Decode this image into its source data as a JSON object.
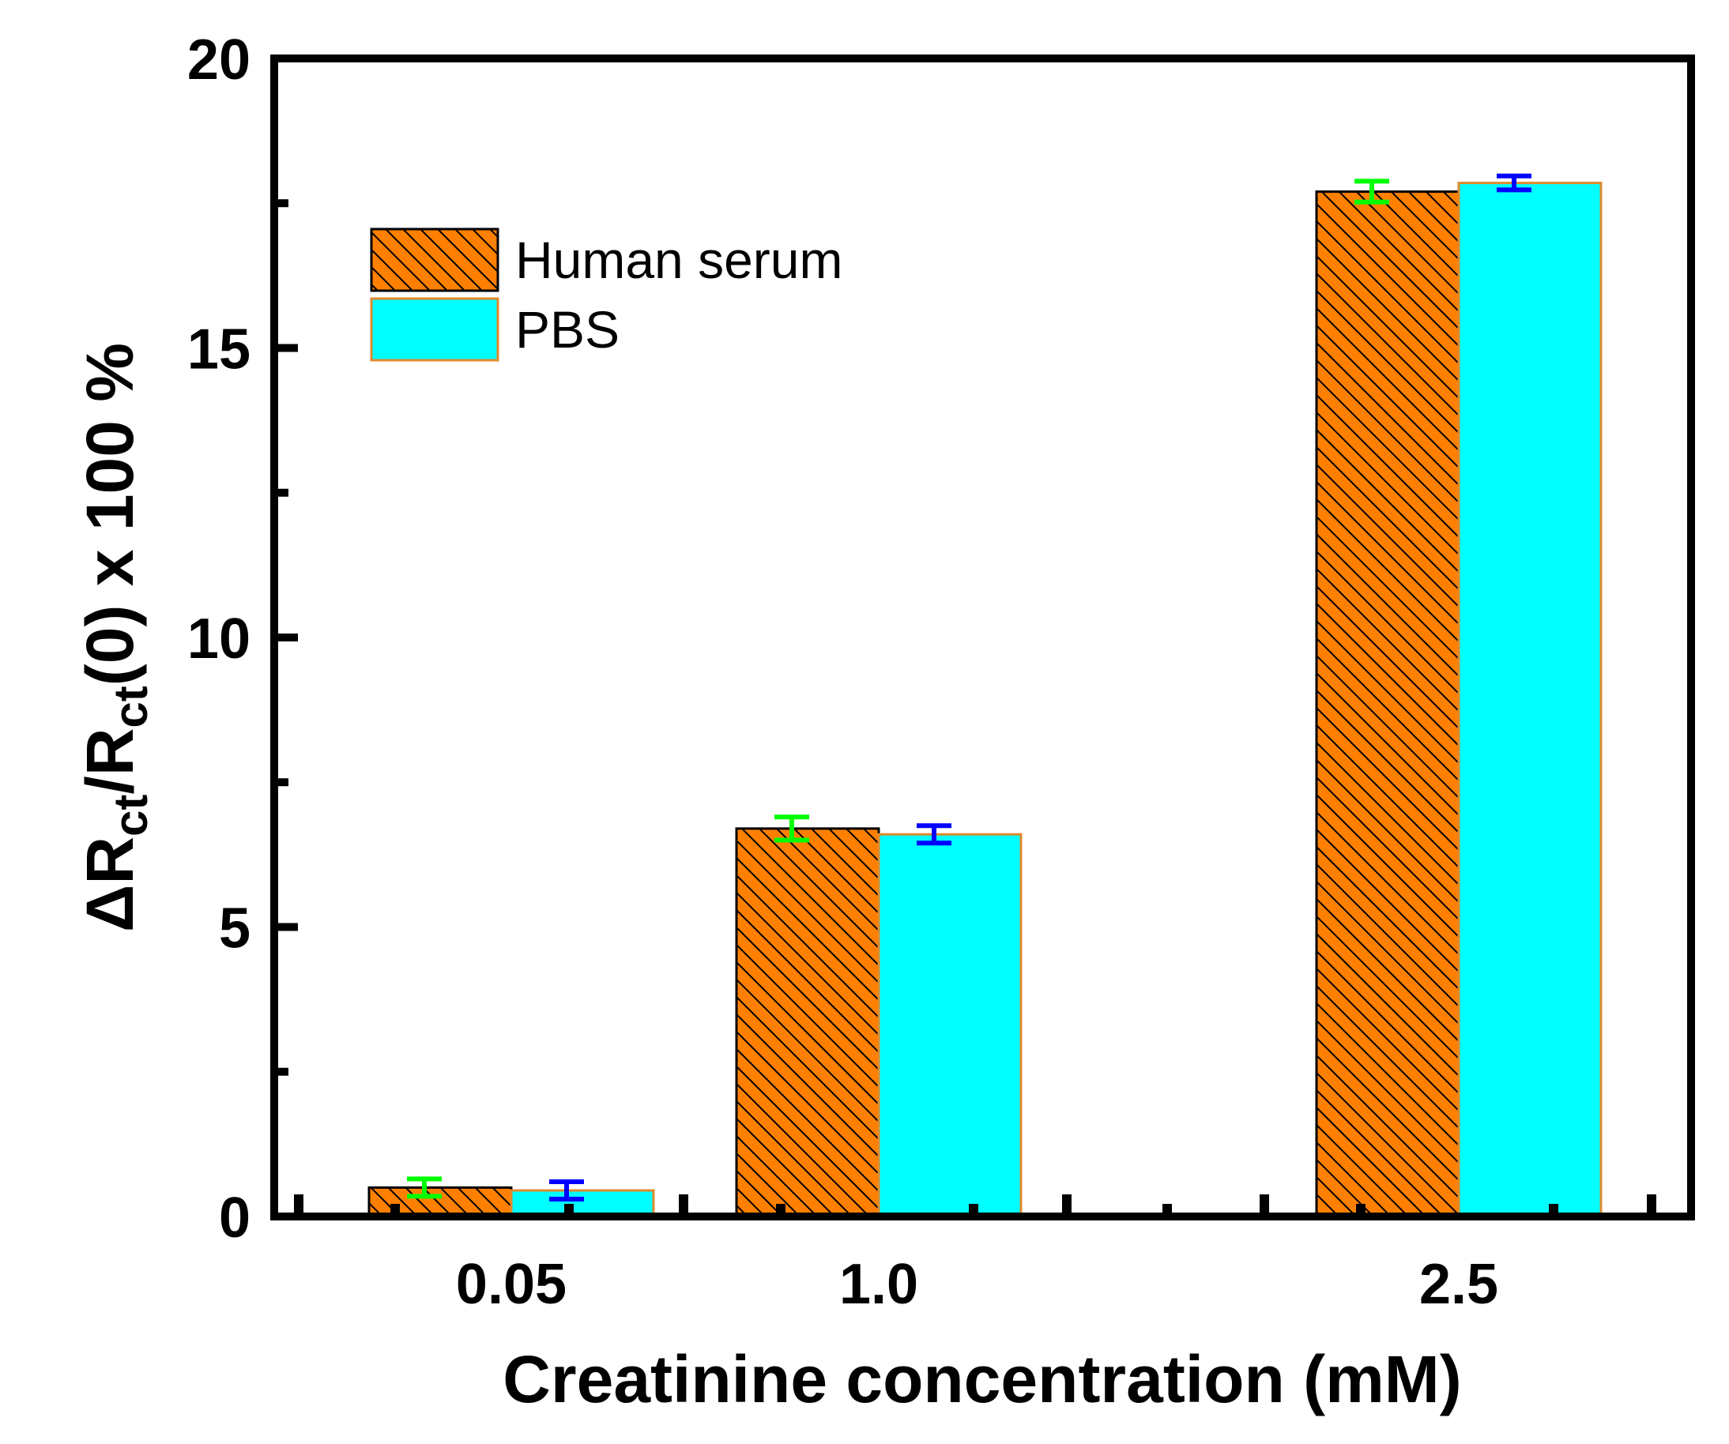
{
  "chart_data": {
    "type": "bar",
    "title": "",
    "xlabel": "Creatinine concentration (mM)",
    "ylabel": {
      "delta": "Δ",
      "r1": "R",
      "sub1": "ct",
      "mid": "/R",
      "sub2": "ct",
      "tail": "(0) x 100 %"
    },
    "categories": [
      "0.05",
      "1.0",
      "2.5"
    ],
    "ylim": [
      0,
      20
    ],
    "yticks": [
      "0",
      "5",
      "10",
      "15",
      "20"
    ],
    "series": [
      {
        "name": "Human serum",
        "values": [
          0.5,
          6.7,
          17.7
        ],
        "errors": [
          0.15,
          0.2,
          0.18
        ],
        "fill": "#FF8000",
        "hatch": true,
        "error_color": "#00FF00"
      },
      {
        "name": "PBS",
        "values": [
          0.45,
          6.6,
          17.85
        ],
        "errors": [
          0.15,
          0.15,
          0.12
        ],
        "fill": "#00FFFF",
        "hatch": false,
        "error_color": "#0000FF"
      }
    ],
    "legend_position": "top-left"
  }
}
